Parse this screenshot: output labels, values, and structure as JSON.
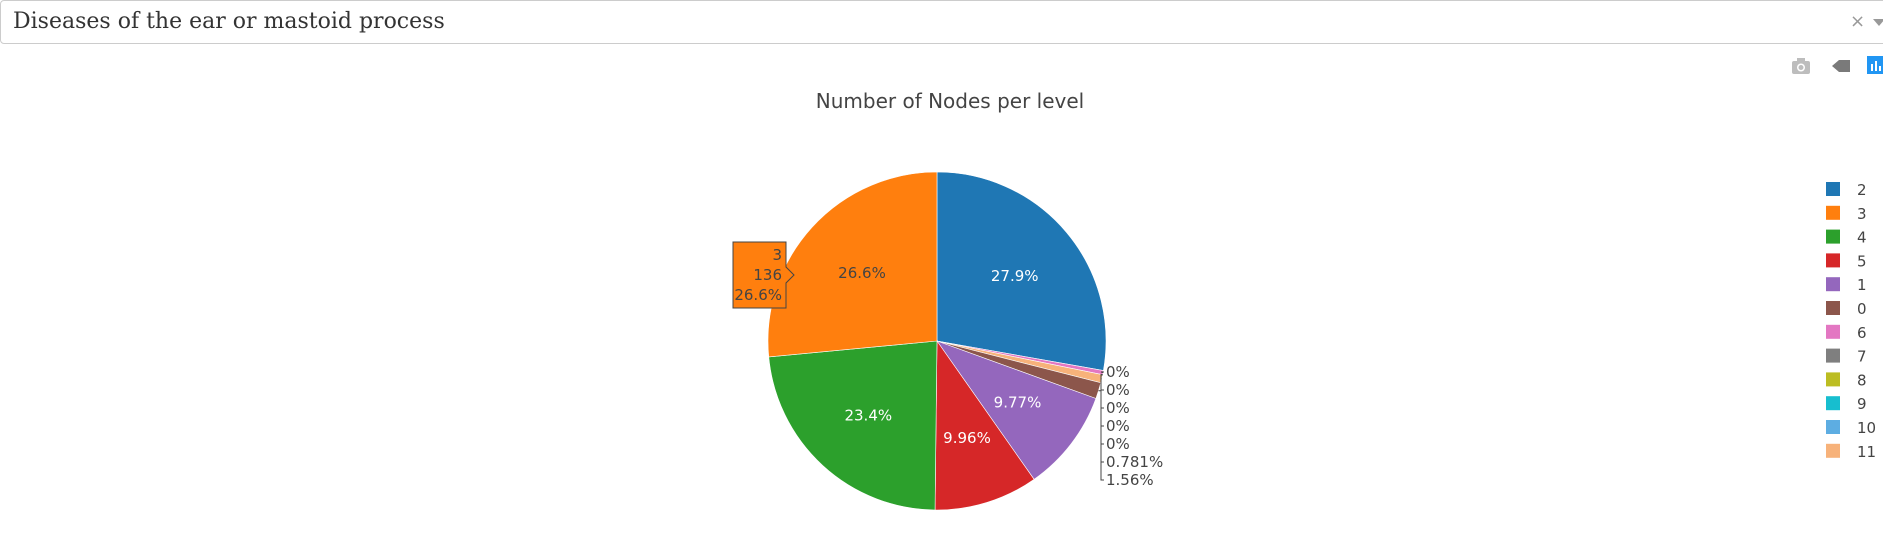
{
  "dropdown": {
    "value": "Diseases of the ear or mastoid process",
    "clear_glyph": "×"
  },
  "modebar": {
    "buttons": [
      "camera-icon",
      "tag-icon",
      "bar-chart-icon"
    ]
  },
  "chart_data": {
    "type": "pie",
    "title": "Number of Nodes per level",
    "slices": [
      {
        "label": "2",
        "percent_text": "27.9%",
        "percent": 27.9,
        "color": "#1f77b4",
        "inside": true
      },
      {
        "label": "6",
        "percent_text": "0%",
        "percent": 0.4,
        "color": "#e377c2",
        "inside": false
      },
      {
        "label": "7",
        "percent_text": "0%",
        "percent": 0.0,
        "color": "#7f7f7f",
        "inside": false
      },
      {
        "label": "8",
        "percent_text": "0%",
        "percent": 0.0,
        "color": "#bcbd22",
        "inside": false
      },
      {
        "label": "9",
        "percent_text": "0%",
        "percent": 0.0,
        "color": "#17becf",
        "inside": false
      },
      {
        "label": "10",
        "percent_text": "0%",
        "percent": 0.0,
        "color": "#5dade2",
        "inside": false
      },
      {
        "label": "11",
        "percent_text": "0.781%",
        "percent": 0.781,
        "color": "#f7b27a",
        "inside": false
      },
      {
        "label": "0",
        "percent_text": "1.56%",
        "percent": 1.56,
        "color": "#8c564b",
        "inside": false
      },
      {
        "label": "1",
        "percent_text": "9.77%",
        "percent": 9.77,
        "color": "#9467bd",
        "inside": true
      },
      {
        "label": "5",
        "percent_text": "9.96%",
        "percent": 9.96,
        "color": "#d62728",
        "inside": true
      },
      {
        "label": "4",
        "percent_text": "23.4%",
        "percent": 23.4,
        "color": "#2ca02c",
        "inside": true
      },
      {
        "label": "3",
        "percent_text": "26.6%",
        "percent": 26.6,
        "color": "#ff7f0e",
        "inside": true
      }
    ],
    "legend": [
      {
        "label": "2",
        "color": "#1f77b4"
      },
      {
        "label": "3",
        "color": "#ff7f0e"
      },
      {
        "label": "4",
        "color": "#2ca02c"
      },
      {
        "label": "5",
        "color": "#d62728"
      },
      {
        "label": "1",
        "color": "#9467bd"
      },
      {
        "label": "0",
        "color": "#8c564b"
      },
      {
        "label": "6",
        "color": "#e377c2"
      },
      {
        "label": "7",
        "color": "#7f7f7f"
      },
      {
        "label": "8",
        "color": "#bcbd22"
      },
      {
        "label": "9",
        "color": "#17becf"
      },
      {
        "label": "10",
        "color": "#5dade2"
      },
      {
        "label": "11",
        "color": "#f7b27a"
      }
    ],
    "legend_position": "right",
    "hover": {
      "label": "3",
      "value": "136",
      "percent": "26.6%",
      "color": "#ff7f0e"
    }
  }
}
